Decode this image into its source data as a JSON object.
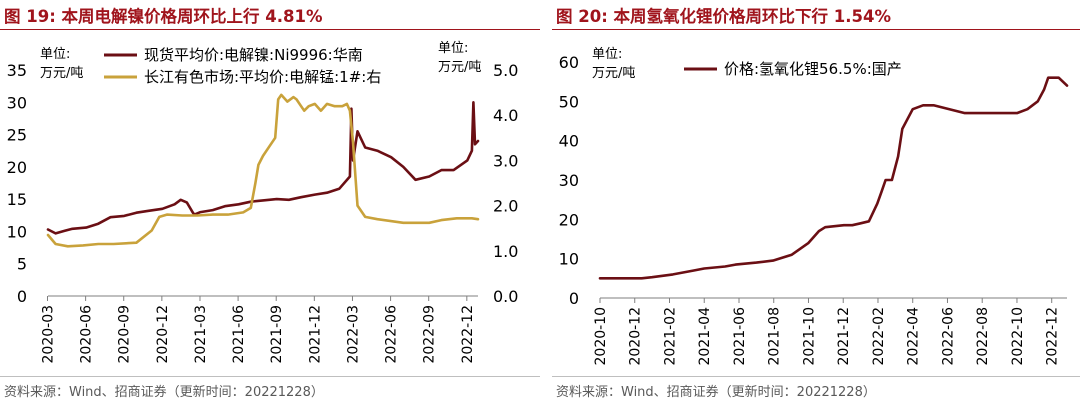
{
  "panels": [
    {
      "title": "图 19:  本周电解镍价格周环比上行 4.81%",
      "source": "资料来源：Wind、招商证券（更新时间：20221228）"
    },
    {
      "title": "图 20:  本周氢氧化锂价格周环比下行 1.54%",
      "source": "资料来源：Wind、招商证券（更新时间：20221228）"
    }
  ],
  "chart_data": [
    {
      "type": "line",
      "title": "本周电解镍价格周环比上行 4.81%",
      "ylabel": "单位：万元/吨",
      "ylabel_left_lines": [
        "单位:",
        "万元/吨"
      ],
      "ylabel_right_lines": [
        "单位:",
        "万元/吨"
      ],
      "ylim": [
        0,
        35
      ],
      "y_ticks": [
        0,
        5,
        10,
        15,
        20,
        25,
        30,
        35
      ],
      "ylim_right": [
        0,
        5
      ],
      "y_ticks_right": [
        "0.0",
        "1.0",
        "2.0",
        "3.0",
        "4.0",
        "5.0"
      ],
      "categories": [
        "2020-03",
        "2020-06",
        "2020-09",
        "2020-12",
        "2021-03",
        "2021-06",
        "2021-09",
        "2021-12",
        "2022-03",
        "2022-06",
        "2022-09",
        "2022-12"
      ],
      "x_start": 2020.17,
      "x_end": 2022.99,
      "series": [
        {
          "name": "现货平均价:电解镍:Ni9996:华南",
          "axis": "left",
          "color": "#6b0f14",
          "x": [
            2020.17,
            2020.22,
            2020.28,
            2020.33,
            2020.42,
            2020.5,
            2020.58,
            2020.67,
            2020.75,
            2020.83,
            2020.92,
            2021.0,
            2021.04,
            2021.08,
            2021.12,
            2021.13,
            2021.17,
            2021.25,
            2021.33,
            2021.42,
            2021.5,
            2021.58,
            2021.67,
            2021.75,
            2021.83,
            2021.92,
            2022.0,
            2022.08,
            2022.15,
            2022.16,
            2022.17,
            2022.2,
            2022.25,
            2022.33,
            2022.42,
            2022.5,
            2022.58,
            2022.67,
            2022.75,
            2022.83,
            2022.92,
            2022.95,
            2022.96,
            2022.97,
            2022.99
          ],
          "values": [
            10.3,
            9.7,
            10.1,
            10.4,
            10.6,
            11.2,
            12.2,
            12.4,
            12.9,
            13.2,
            13.5,
            14.2,
            14.9,
            14.5,
            12.9,
            12.6,
            13.0,
            13.3,
            13.9,
            14.2,
            14.6,
            14.8,
            15.0,
            14.9,
            15.3,
            15.7,
            16.0,
            16.6,
            18.5,
            29.0,
            21.0,
            25.5,
            23.0,
            22.5,
            21.5,
            20.0,
            18.0,
            18.5,
            19.5,
            19.5,
            21.0,
            22.5,
            30.0,
            23.5,
            24.0
          ]
        },
        {
          "name": "长江有色市场:平均价:电解锰:1#:右",
          "axis": "right",
          "color": "#c9a23b",
          "x": [
            2020.17,
            2020.22,
            2020.3,
            2020.4,
            2020.5,
            2020.6,
            2020.75,
            2020.85,
            2020.9,
            2020.95,
            2021.05,
            2021.15,
            2021.25,
            2021.35,
            2021.45,
            2021.5,
            2021.53,
            2021.55,
            2021.58,
            2021.62,
            2021.66,
            2021.68,
            2021.7,
            2021.74,
            2021.78,
            2021.8,
            2021.83,
            2021.85,
            2021.88,
            2021.92,
            2021.96,
            2022.0,
            2022.05,
            2022.1,
            2022.13,
            2022.15,
            2022.17,
            2022.2,
            2022.25,
            2022.33,
            2022.5,
            2022.67,
            2022.75,
            2022.85,
            2022.95,
            2022.99
          ],
          "values": [
            1.35,
            1.15,
            1.1,
            1.12,
            1.15,
            1.15,
            1.18,
            1.45,
            1.75,
            1.8,
            1.78,
            1.78,
            1.8,
            1.8,
            1.85,
            1.95,
            2.5,
            2.9,
            3.1,
            3.3,
            3.5,
            4.35,
            4.45,
            4.3,
            4.4,
            4.35,
            4.2,
            4.1,
            4.2,
            4.25,
            4.1,
            4.25,
            4.2,
            4.2,
            4.25,
            4.1,
            3.4,
            2.0,
            1.75,
            1.7,
            1.62,
            1.62,
            1.68,
            1.72,
            1.72,
            1.7
          ]
        }
      ]
    },
    {
      "type": "line",
      "title": "本周氢氧化锂价格周环比下行 1.54%",
      "ylabel": "单位：万元/吨",
      "ylabel_left_lines": [
        "单位:",
        "万元/吨"
      ],
      "ylim": [
        0,
        60
      ],
      "y_ticks": [
        0,
        10,
        20,
        30,
        40,
        50,
        60
      ],
      "categories": [
        "2020-10",
        "2020-12",
        "2021-02",
        "2021-04",
        "2021-06",
        "2021-08",
        "2021-10",
        "2021-12",
        "2022-02",
        "2022-04",
        "2022-06",
        "2022-08",
        "2022-10",
        "2022-12"
      ],
      "x_start": 2020.75,
      "x_end": 2022.99,
      "series": [
        {
          "name": "价格:氢氧化锂56.5%:国产",
          "axis": "left",
          "color": "#6b0f14",
          "x": [
            2020.75,
            2020.95,
            2021.0,
            2021.1,
            2021.2,
            2021.25,
            2021.35,
            2021.4,
            2021.5,
            2021.58,
            2021.67,
            2021.75,
            2021.8,
            2021.83,
            2021.92,
            2021.96,
            2022.0,
            2022.04,
            2022.08,
            2022.1,
            2022.12,
            2022.15,
            2022.18,
            2022.2,
            2022.25,
            2022.3,
            2022.35,
            2022.5,
            2022.6,
            2022.65,
            2022.7,
            2022.75,
            2022.8,
            2022.85,
            2022.88,
            2022.9,
            2022.95,
            2022.99
          ],
          "values": [
            5.0,
            5.0,
            5.3,
            6.0,
            7.0,
            7.5,
            8.0,
            8.5,
            9.0,
            9.5,
            11.0,
            14.0,
            17.0,
            18.0,
            18.5,
            18.5,
            19.0,
            19.5,
            24.0,
            27.0,
            30.0,
            30.0,
            36.0,
            43.0,
            48.0,
            49.0,
            49.0,
            47.0,
            47.0,
            47.0,
            47.0,
            47.0,
            48.0,
            50.0,
            53.0,
            56.0,
            56.0,
            54.0
          ]
        }
      ]
    }
  ]
}
